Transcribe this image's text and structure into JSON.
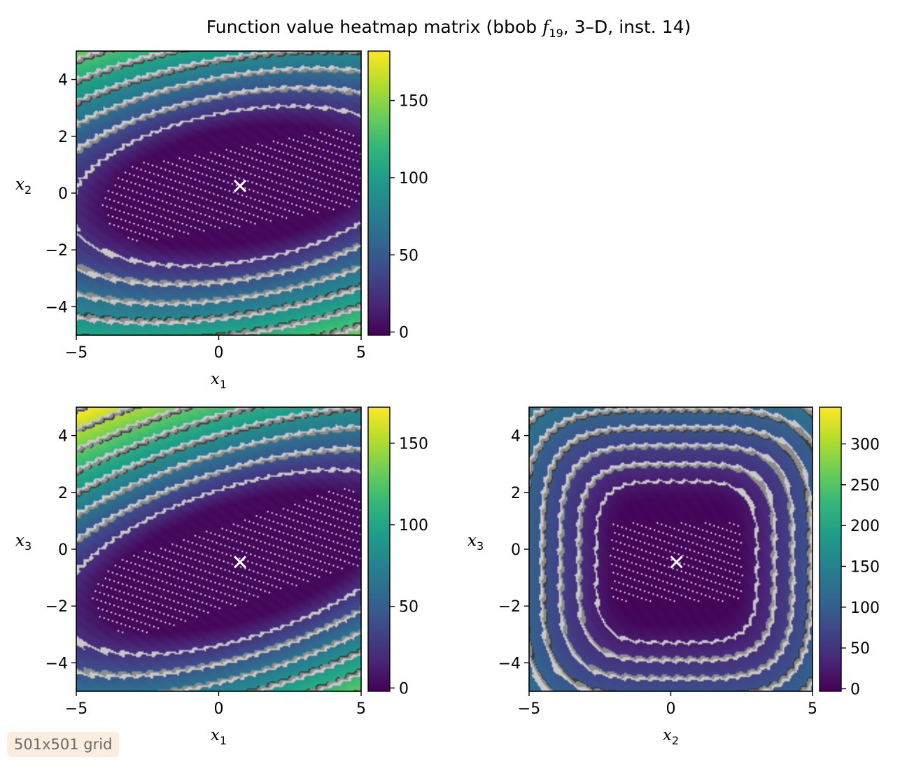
{
  "figure": {
    "title_prefix": "Function value heatmap matrix (bbob ",
    "title_f": "f",
    "title_fsub": "19",
    "title_suffix": ", 3–D, inst. 14)",
    "grid_badge": "501x501 grid"
  },
  "colors": {
    "viridis": [
      "#440154",
      "#482878",
      "#3e4989",
      "#31688e",
      "#26828e",
      "#1f9e89",
      "#35b779",
      "#6ece58",
      "#b5de2b",
      "#fde725"
    ],
    "contour_light": "#c8c8c8",
    "contour_mid": "#8c8c8c",
    "contour_dark": "#3c3c3c",
    "optimum_marker": "#ffffff"
  },
  "chart_data": [
    {
      "type": "heatmap",
      "panel": "x1-x2",
      "xlabel": "x",
      "xlabel_sub": "1",
      "ylabel": "x",
      "ylabel_sub": "2",
      "xlim": [
        -5,
        5
      ],
      "ylim": [
        -5,
        5
      ],
      "xticks": [
        -5,
        0,
        5
      ],
      "xtick_labels": [
        "−5",
        "0",
        "5"
      ],
      "yticks": [
        -4,
        -2,
        0,
        2,
        4
      ],
      "ytick_labels": [
        "−4",
        "−2",
        "0",
        "2",
        "4"
      ],
      "colorbar": {
        "min": -2,
        "max": 182,
        "ticks": [
          0,
          50,
          100,
          150
        ],
        "tick_labels": [
          "0",
          "50",
          "100",
          "150"
        ]
      },
      "optimum": [
        0.75,
        0.25
      ],
      "minimum_ridge_angle_deg": 10,
      "stretch": 2.1
    },
    {
      "type": "heatmap",
      "panel": "x1-x3",
      "xlabel": "x",
      "xlabel_sub": "1",
      "ylabel": "x",
      "ylabel_sub": "3",
      "xlim": [
        -5,
        5
      ],
      "ylim": [
        -5,
        5
      ],
      "xticks": [
        -5,
        0,
        5
      ],
      "xtick_labels": [
        "−5",
        "0",
        "5"
      ],
      "yticks": [
        -4,
        -2,
        0,
        2,
        4
      ],
      "ytick_labels": [
        "−4",
        "−2",
        "0",
        "2",
        "4"
      ],
      "colorbar": {
        "min": -2,
        "max": 172,
        "ticks": [
          0,
          50,
          100,
          150
        ],
        "tick_labels": [
          "0",
          "50",
          "100",
          "150"
        ]
      },
      "optimum": [
        0.75,
        -0.45
      ],
      "minimum_ridge_angle_deg": 18,
      "stretch": 2.3
    },
    {
      "type": "heatmap",
      "panel": "x2-x3",
      "xlabel": "x",
      "xlabel_sub": "2",
      "ylabel": "x",
      "ylabel_sub": "3",
      "xlim": [
        -5,
        5
      ],
      "ylim": [
        -5,
        5
      ],
      "xticks": [
        -5,
        0,
        5
      ],
      "xtick_labels": [
        "−5",
        "0",
        "5"
      ],
      "yticks": [
        -4,
        -2,
        0,
        2,
        4
      ],
      "ytick_labels": [
        "−4",
        "−2",
        "0",
        "2",
        "4"
      ],
      "colorbar": {
        "min": -3,
        "max": 345,
        "ticks": [
          0,
          50,
          100,
          150,
          200,
          250,
          300
        ],
        "tick_labels": [
          "0",
          "50",
          "100",
          "150",
          "200",
          "250",
          "300"
        ]
      },
      "optimum": [
        0.2,
        -0.45
      ],
      "minimum_ridge_angle_deg": 0,
      "stretch": 1.0
    }
  ]
}
